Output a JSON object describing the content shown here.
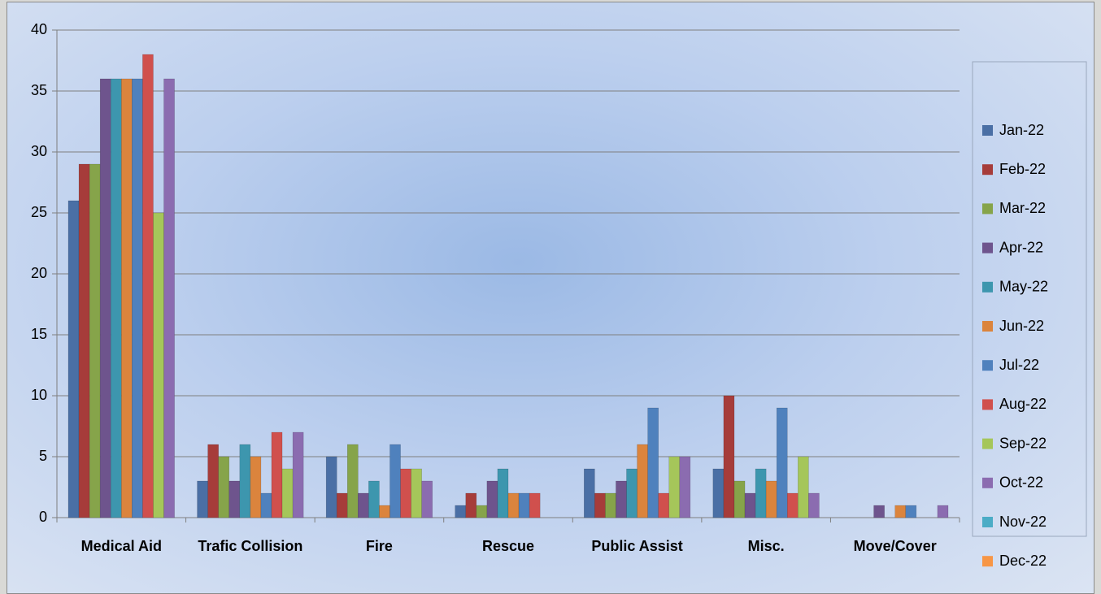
{
  "chart_data": {
    "type": "bar",
    "categories": [
      "Medical Aid",
      "Trafic Collision",
      "Fire",
      "Rescue",
      "Public Assist",
      "Misc.",
      "Move/Cover"
    ],
    "series": [
      {
        "name": "Jan-22",
        "color": "#4a6fa5",
        "values": [
          26,
          3,
          5,
          1,
          4,
          4,
          0
        ]
      },
      {
        "name": "Feb-22",
        "color": "#a63c3a",
        "values": [
          29,
          6,
          2,
          2,
          2,
          10,
          0
        ]
      },
      {
        "name": "Mar-22",
        "color": "#86a44a",
        "values": [
          29,
          5,
          6,
          1,
          2,
          3,
          0
        ]
      },
      {
        "name": "Apr-22",
        "color": "#6e548d",
        "values": [
          36,
          3,
          2,
          3,
          3,
          2,
          1
        ]
      },
      {
        "name": "May-22",
        "color": "#3d96ae",
        "values": [
          36,
          6,
          3,
          4,
          4,
          4,
          0
        ]
      },
      {
        "name": "Jun-22",
        "color": "#db843d",
        "values": [
          36,
          5,
          1,
          2,
          6,
          3,
          1
        ]
      },
      {
        "name": "Jul-22",
        "color": "#4f81bd",
        "values": [
          36,
          2,
          6,
          2,
          9,
          9,
          1
        ]
      },
      {
        "name": "Aug-22",
        "color": "#d0504d",
        "values": [
          38,
          7,
          4,
          2,
          2,
          2,
          0
        ]
      },
      {
        "name": "Sep-22",
        "color": "#a5c65a",
        "values": [
          25,
          4,
          4,
          0,
          5,
          5,
          0
        ]
      },
      {
        "name": "Oct-22",
        "color": "#8b6cb0",
        "values": [
          36,
          7,
          3,
          0,
          5,
          2,
          1
        ]
      },
      {
        "name": "Nov-22",
        "color": "#4bacc6",
        "values": [
          null,
          null,
          null,
          null,
          null,
          null,
          null
        ]
      },
      {
        "name": "Dec-22",
        "color": "#f79646",
        "values": [
          null,
          null,
          null,
          null,
          null,
          null,
          null
        ]
      }
    ],
    "ylim": [
      0,
      40
    ],
    "yticks": [
      0,
      5,
      10,
      15,
      20,
      25,
      30,
      35,
      40
    ],
    "grid": true,
    "legend": "right"
  }
}
